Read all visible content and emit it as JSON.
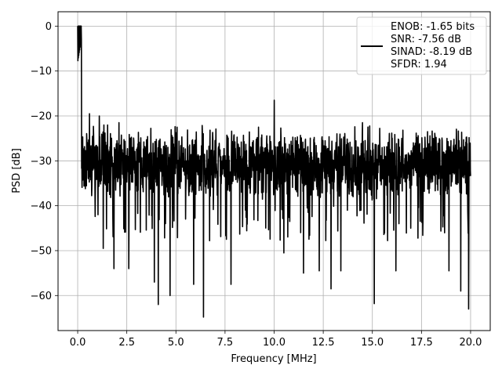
{
  "chart_data": {
    "type": "line",
    "title": "",
    "xlabel": "Frequency [MHz]",
    "ylabel": "PSD [dB]",
    "xlim": [
      -1.0,
      21.0
    ],
    "ylim": [
      -67.8,
      3.2
    ],
    "xticks": [
      0.0,
      2.5,
      5.0,
      7.5,
      10.0,
      12.5,
      15.0,
      17.5,
      20.0
    ],
    "xtick_labels": [
      "0.0",
      "2.5",
      "5.0",
      "7.5",
      "10.0",
      "12.5",
      "15.0",
      "17.5",
      "20.0"
    ],
    "yticks": [
      0,
      -10,
      -20,
      -30,
      -40,
      -50,
      -60
    ],
    "ytick_labels": [
      "0",
      "−10",
      "−20",
      "−30",
      "−40",
      "−50",
      "−60"
    ],
    "grid": true,
    "legend_position": "top-right",
    "legend": [
      "ENOB: -1.65 bits",
      "SNR: -7.56 dB",
      "SINAD: -8.19 dB",
      "SFDR: 1.94"
    ],
    "line_color": "#000000",
    "x_range": [
      0.0,
      20.0
    ],
    "noise_floor_db": -31,
    "noise_band_db": [
      -40,
      -22
    ],
    "peak": {
      "x": 0.0,
      "y": 0.0
    },
    "spur": {
      "x": 10.0,
      "y": -16.5
    },
    "notable_minima": [
      {
        "x": 1.3,
        "y": -49.5
      },
      {
        "x": 1.85,
        "y": -54.0
      },
      {
        "x": 2.6,
        "y": -54.0
      },
      {
        "x": 3.9,
        "y": -57.0
      },
      {
        "x": 4.1,
        "y": -62.0
      },
      {
        "x": 4.7,
        "y": -60.0
      },
      {
        "x": 5.9,
        "y": -57.5
      },
      {
        "x": 6.4,
        "y": -64.8
      },
      {
        "x": 7.8,
        "y": -57.5
      },
      {
        "x": 10.5,
        "y": -50.5
      },
      {
        "x": 11.5,
        "y": -55.0
      },
      {
        "x": 12.3,
        "y": -54.5
      },
      {
        "x": 12.9,
        "y": -58.5
      },
      {
        "x": 13.4,
        "y": -54.5
      },
      {
        "x": 15.1,
        "y": -61.8
      },
      {
        "x": 16.2,
        "y": -54.5
      },
      {
        "x": 18.9,
        "y": -54.5
      },
      {
        "x": 19.5,
        "y": -59.0
      },
      {
        "x": 19.9,
        "y": -63.0
      }
    ],
    "notable_maxima": [
      {
        "x": 0.6,
        "y": -19.5
      },
      {
        "x": 1.1,
        "y": -20.0
      },
      {
        "x": 2.1,
        "y": -21.5
      },
      {
        "x": 9.2,
        "y": -22.5
      },
      {
        "x": 14.5,
        "y": -21.5
      },
      {
        "x": 16.5,
        "y": -25.0
      },
      {
        "x": 19.0,
        "y": -25.5
      }
    ]
  }
}
